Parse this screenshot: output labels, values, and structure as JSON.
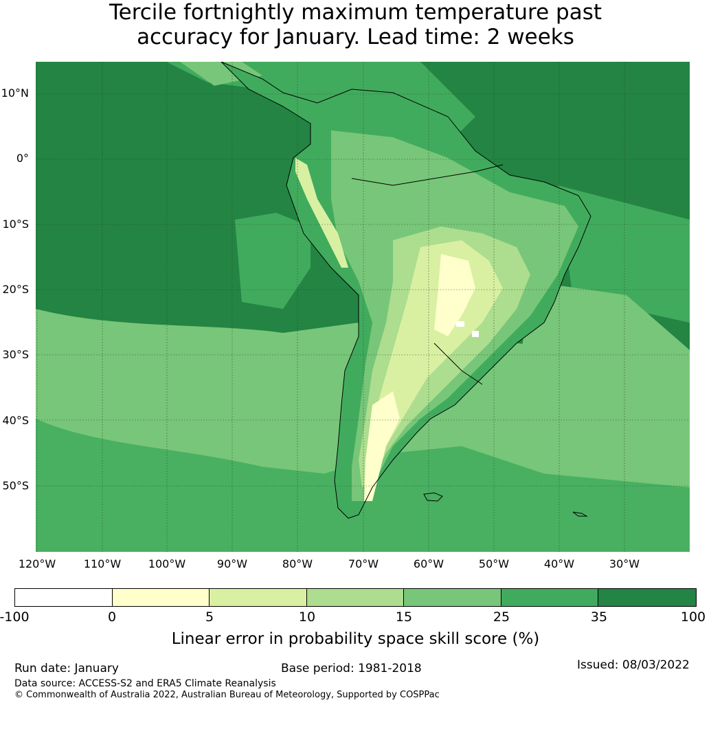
{
  "title": {
    "line1": "Tercile fortnightly maximum temperature past",
    "line2": "accuracy for January. Lead time: 2 weeks"
  },
  "map": {
    "latitude_labels": [
      "10°N",
      "0°",
      "10°S",
      "20°S",
      "30°S",
      "40°S",
      "50°S"
    ],
    "longitude_labels": [
      "120°W",
      "110°W",
      "100°W",
      "90°W",
      "80°W",
      "70°W",
      "60°W",
      "50°W",
      "40°W",
      "30°W"
    ],
    "region": "South America",
    "coastline_color": "#000000"
  },
  "colorbar": {
    "ticks": [
      "-100",
      "0",
      "5",
      "10",
      "15",
      "25",
      "35",
      "100"
    ],
    "colors": [
      "#ffffff",
      "#ffffcc",
      "#d9f0a3",
      "#addd8e",
      "#78c679",
      "#41ab5d",
      "#238443"
    ],
    "label": "Linear error in probability space skill score (%)"
  },
  "footer": {
    "run_date": "Run date: January",
    "base_period": "Base period: 1981-2018",
    "issued": "Issued: 08/03/2022",
    "data_source": "Data source: ACCESS-S2 and ERA5 Climate Reanalysis",
    "copyright": "© Commonwealth of Australia 2022, Australian Bureau of Meteorology, Supported by COSPPac"
  }
}
